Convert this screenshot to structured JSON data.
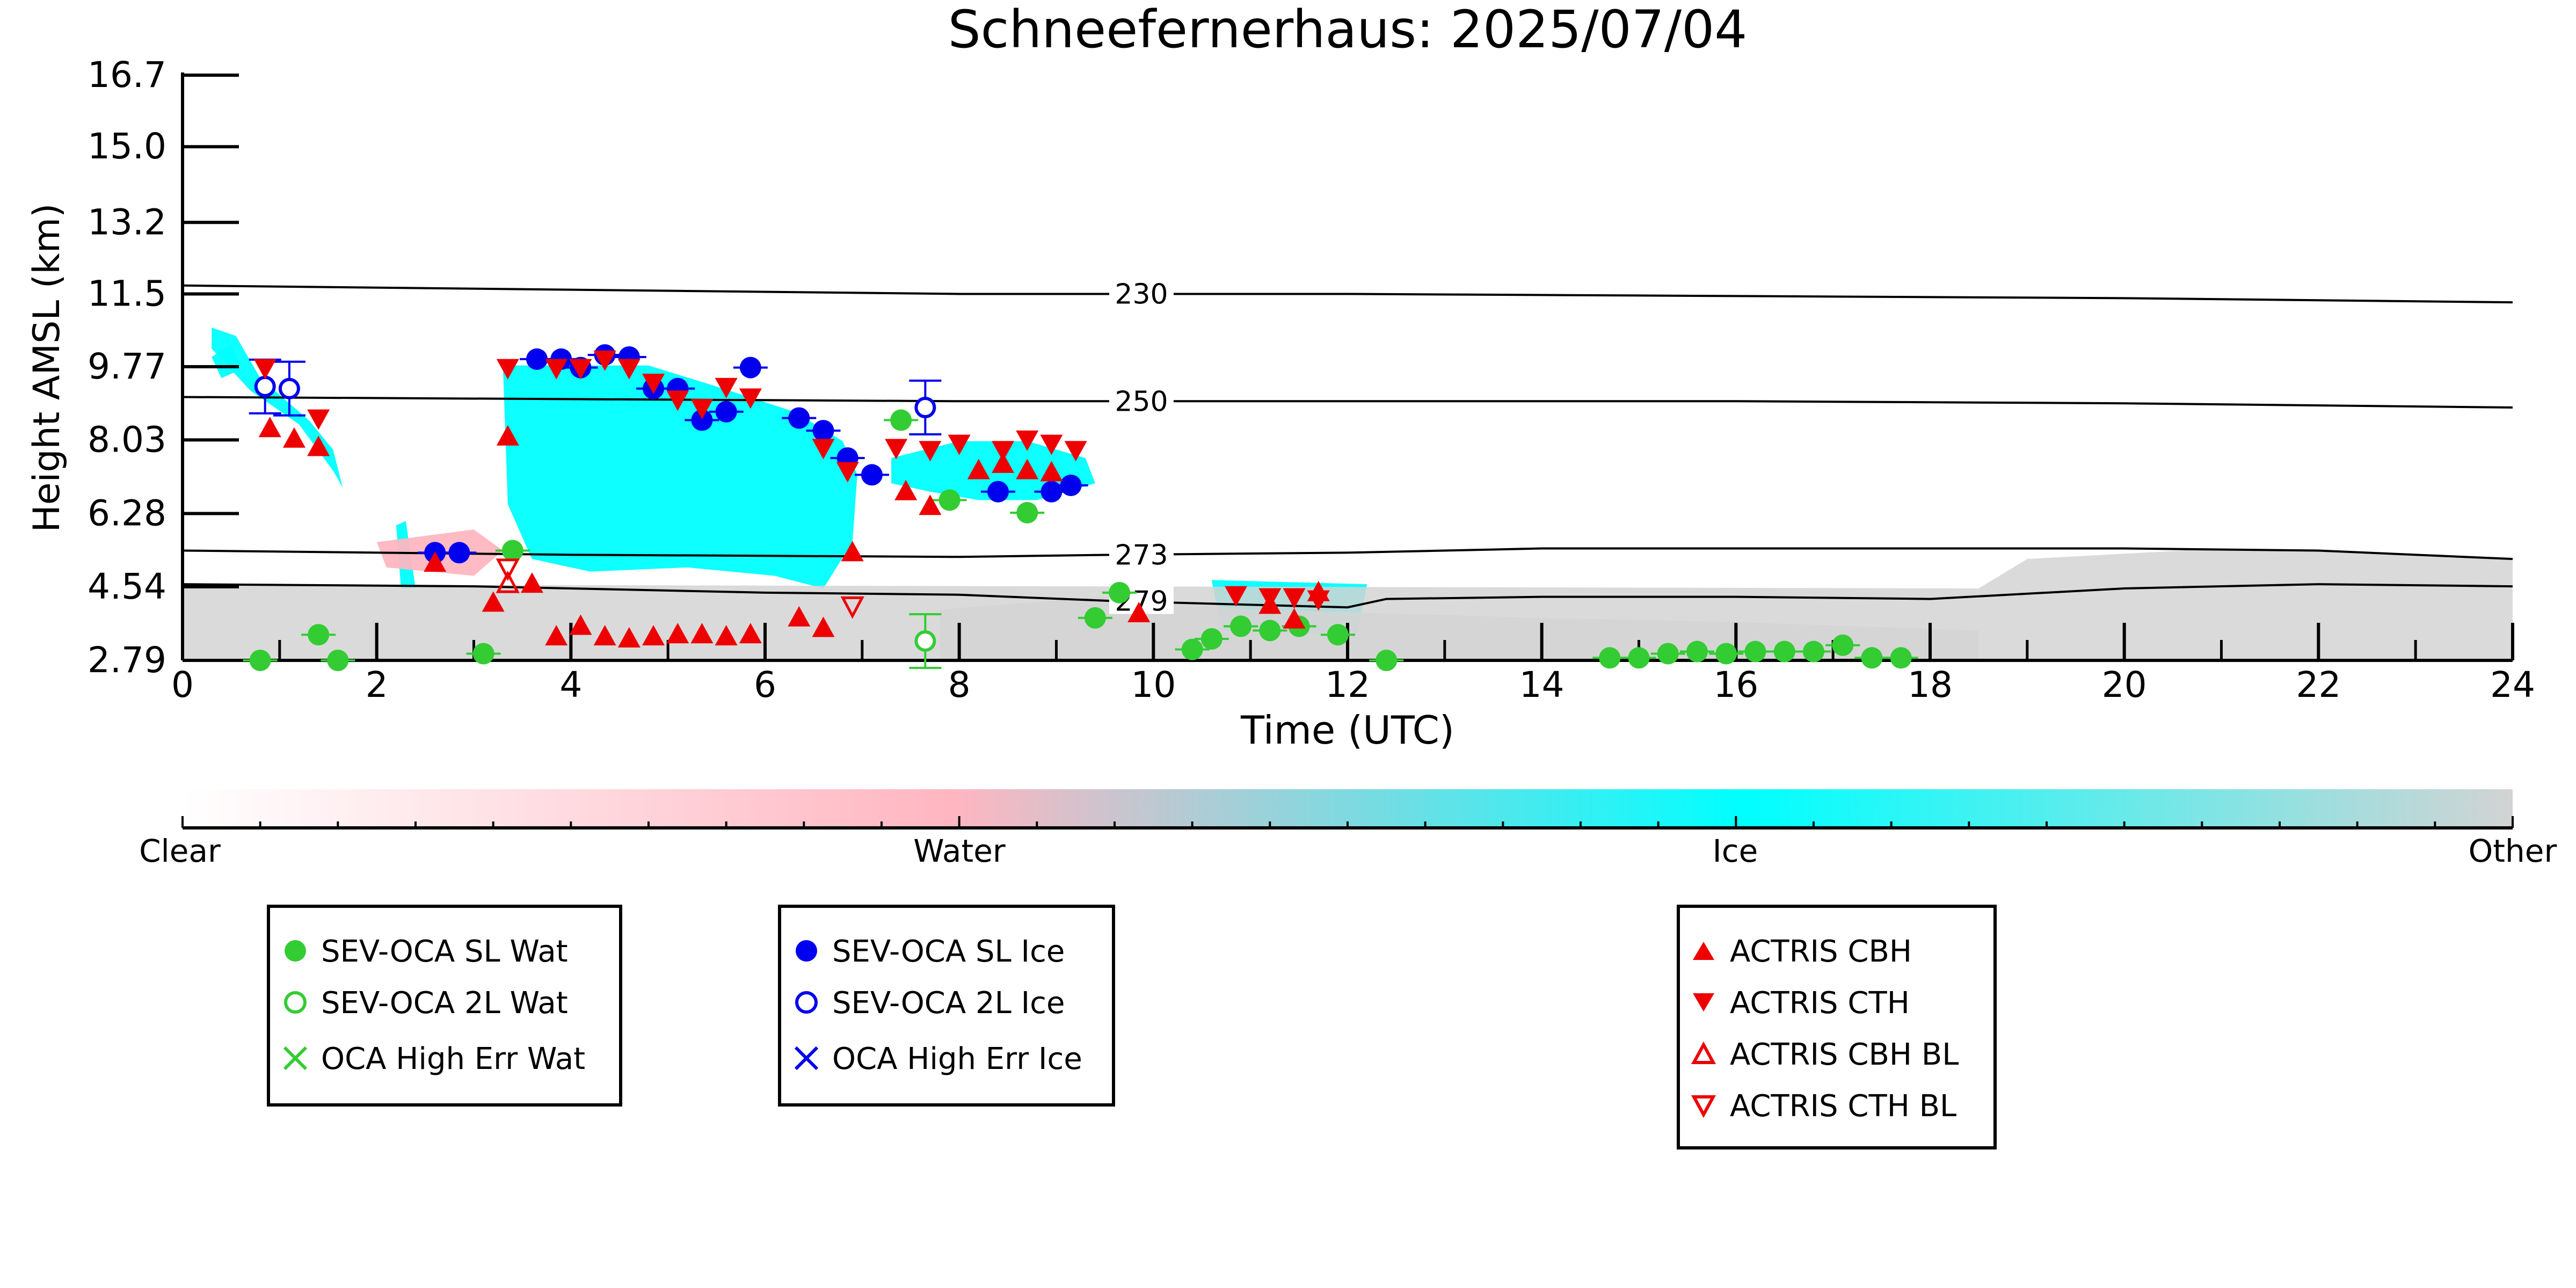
{
  "chart_data": {
    "type": "scatter",
    "title": "Schneefernerhaus: 2025/07/04",
    "xlabel": "Time (UTC)",
    "ylabel": "Height AMSL (km)",
    "xlim": [
      0,
      24
    ],
    "ylim": [
      2.79,
      16.7
    ],
    "x_ticks": [
      "0",
      "2",
      "4",
      "6",
      "8",
      "10",
      "12",
      "14",
      "16",
      "18",
      "20",
      "22",
      "24"
    ],
    "y_ticks": [
      "2.79",
      "4.54",
      "6.28",
      "8.03",
      "9.77",
      "11.5",
      "13.2",
      "15.0",
      "16.7"
    ],
    "isotherms": [
      {
        "label": "230",
        "points": [
          [
            0,
            11.7
          ],
          [
            4,
            11.6
          ],
          [
            8,
            11.5
          ],
          [
            12,
            11.5
          ],
          [
            16,
            11.45
          ],
          [
            20,
            11.4
          ],
          [
            24,
            11.3
          ]
        ]
      },
      {
        "label": "250",
        "points": [
          [
            0,
            9.05
          ],
          [
            4,
            9.0
          ],
          [
            8,
            8.95
          ],
          [
            12,
            8.95
          ],
          [
            16,
            8.95
          ],
          [
            20,
            8.9
          ],
          [
            24,
            8.8
          ]
        ]
      },
      {
        "label": "273",
        "points": [
          [
            0,
            5.4
          ],
          [
            4,
            5.3
          ],
          [
            8,
            5.25
          ],
          [
            9.6,
            5.3
          ],
          [
            12,
            5.35
          ],
          [
            14,
            5.45
          ],
          [
            16,
            5.45
          ],
          [
            18,
            5.45
          ],
          [
            20,
            5.45
          ],
          [
            22,
            5.4
          ],
          [
            24,
            5.2
          ]
        ]
      },
      {
        "label": "279",
        "points": [
          [
            0,
            4.6
          ],
          [
            3,
            4.55
          ],
          [
            6,
            4.4
          ],
          [
            8,
            4.35
          ],
          [
            9.6,
            4.2
          ],
          [
            12,
            4.05
          ],
          [
            12.4,
            4.25
          ],
          [
            14,
            4.3
          ],
          [
            16,
            4.3
          ],
          [
            18,
            4.25
          ],
          [
            20,
            4.5
          ],
          [
            22,
            4.6
          ],
          [
            24,
            4.55
          ]
        ]
      }
    ],
    "cloud_regions": [
      {
        "class": "Ice",
        "points": [
          [
            0.3,
            10.7
          ],
          [
            0.55,
            10.5
          ],
          [
            0.8,
            9.5
          ],
          [
            1.3,
            8.5
          ],
          [
            1.55,
            7.8
          ],
          [
            1.65,
            6.9
          ],
          [
            1.55,
            7.3
          ],
          [
            1.2,
            8.4
          ],
          [
            0.7,
            9.2
          ],
          [
            0.3,
            10.2
          ]
        ]
      },
      {
        "class": "Ice",
        "points": [
          [
            3.3,
            9.8
          ],
          [
            4.8,
            9.8
          ],
          [
            5.5,
            9.3
          ],
          [
            6.3,
            8.7
          ],
          [
            6.8,
            8.0
          ],
          [
            6.95,
            7.2
          ],
          [
            6.9,
            5.6
          ],
          [
            6.6,
            4.5
          ],
          [
            6.1,
            4.8
          ],
          [
            5.2,
            5.0
          ],
          [
            4.2,
            4.9
          ],
          [
            3.6,
            5.2
          ],
          [
            3.35,
            6.5
          ]
        ]
      },
      {
        "class": "Ice",
        "points": [
          [
            7.3,
            7.6
          ],
          [
            8.0,
            8.0
          ],
          [
            8.7,
            8.0
          ],
          [
            9.3,
            7.6
          ],
          [
            9.4,
            7.0
          ],
          [
            8.8,
            6.6
          ],
          [
            8.2,
            6.6
          ],
          [
            7.7,
            6.8
          ],
          [
            7.3,
            7.0
          ]
        ]
      },
      {
        "class": "Ice",
        "points": [
          [
            0.3,
            10.0
          ],
          [
            0.5,
            10.3
          ],
          [
            0.6,
            9.7
          ],
          [
            0.4,
            9.5
          ]
        ]
      },
      {
        "class": "Ice",
        "points": [
          [
            10.6,
            4.7
          ],
          [
            12.2,
            4.6
          ],
          [
            12.1,
            3.4
          ],
          [
            10.7,
            3.5
          ]
        ]
      },
      {
        "class": "Ice",
        "points": [
          [
            2.2,
            6.0
          ],
          [
            2.3,
            6.1
          ],
          [
            2.4,
            4.5
          ],
          [
            2.25,
            4.5
          ]
        ]
      },
      {
        "class": "Water",
        "points": [
          [
            2.0,
            5.6
          ],
          [
            3.0,
            5.9
          ],
          [
            3.3,
            5.4
          ],
          [
            3.0,
            4.8
          ],
          [
            2.1,
            5.0
          ]
        ]
      },
      {
        "class": "Other",
        "points": [
          [
            0,
            4.6
          ],
          [
            18.5,
            4.5
          ],
          [
            18.5,
            3.3
          ],
          [
            24,
            3.3
          ],
          [
            24,
            2.79
          ],
          [
            0,
            2.79
          ]
        ]
      },
      {
        "class": "Other",
        "points": [
          [
            18.5,
            4.5
          ],
          [
            19,
            5.2
          ],
          [
            21,
            5.45
          ],
          [
            23,
            5.3
          ],
          [
            24,
            5.2
          ],
          [
            24,
            3.3
          ],
          [
            18.5,
            3.3
          ]
        ]
      },
      {
        "class": "Other",
        "points": [
          [
            7.8,
            4.0
          ],
          [
            9.5,
            4.3
          ],
          [
            11,
            4.0
          ],
          [
            14,
            3.8
          ],
          [
            16,
            3.7
          ],
          [
            18.5,
            3.5
          ],
          [
            18.5,
            2.79
          ],
          [
            7.8,
            2.79
          ]
        ]
      }
    ],
    "colorbar": {
      "labels": [
        "Clear",
        "Water",
        "Ice",
        "Other"
      ],
      "colors": [
        "#ffffff",
        "#ffb6c1",
        "#00ffff",
        "#d3d3d3"
      ]
    },
    "series": [
      {
        "name": "SEV-OCA SL Wat",
        "marker": "circle-filled",
        "color": "#33cc33",
        "points": [
          [
            0.8,
            2.79
          ],
          [
            1.4,
            3.4
          ],
          [
            1.6,
            2.79
          ],
          [
            3.1,
            2.95
          ],
          [
            3.4,
            5.4
          ],
          [
            7.4,
            8.5
          ],
          [
            7.9,
            6.6
          ],
          [
            8.7,
            6.3
          ],
          [
            9.4,
            3.8
          ],
          [
            9.65,
            4.4
          ],
          [
            10.4,
            3.05
          ],
          [
            10.6,
            3.3
          ],
          [
            10.9,
            3.6
          ],
          [
            11.2,
            3.5
          ],
          [
            11.5,
            3.6
          ],
          [
            11.9,
            3.4
          ],
          [
            12.4,
            2.79
          ],
          [
            14.7,
            2.85
          ],
          [
            15.0,
            2.85
          ],
          [
            15.3,
            2.95
          ],
          [
            15.6,
            3.0
          ],
          [
            15.9,
            2.95
          ],
          [
            16.2,
            3.0
          ],
          [
            16.5,
            3.0
          ],
          [
            16.8,
            3.0
          ],
          [
            17.1,
            3.15
          ],
          [
            17.4,
            2.85
          ],
          [
            17.7,
            2.85
          ]
        ]
      },
      {
        "name": "SEV-OCA 2L Wat",
        "marker": "circle-open",
        "color": "#33cc33",
        "points": [
          [
            7.65,
            3.25
          ]
        ]
      },
      {
        "name": "OCA High Err Wat",
        "marker": "x",
        "color": "#33cc33",
        "points": []
      },
      {
        "name": "SEV-OCA SL Ice",
        "marker": "circle-filled",
        "color": "#0000ee",
        "points": [
          [
            2.6,
            5.35
          ],
          [
            2.85,
            5.35
          ],
          [
            3.65,
            9.95
          ],
          [
            3.9,
            9.95
          ],
          [
            4.1,
            9.75
          ],
          [
            4.35,
            10.05
          ],
          [
            4.6,
            10.0
          ],
          [
            4.85,
            9.25
          ],
          [
            5.1,
            9.25
          ],
          [
            5.35,
            8.5
          ],
          [
            5.6,
            8.7
          ],
          [
            5.85,
            9.75
          ],
          [
            6.35,
            8.55
          ],
          [
            6.6,
            8.25
          ],
          [
            6.85,
            7.6
          ],
          [
            7.1,
            7.2
          ],
          [
            8.4,
            6.8
          ],
          [
            8.95,
            6.8
          ],
          [
            9.15,
            6.95
          ]
        ]
      },
      {
        "name": "SEV-OCA 2L Ice",
        "marker": "circle-open",
        "color": "#0000ee",
        "points": [
          [
            0.85,
            9.3
          ],
          [
            1.1,
            9.25
          ],
          [
            7.65,
            8.8
          ]
        ]
      },
      {
        "name": "OCA High Err Ice",
        "marker": "x",
        "color": "#0000ee",
        "points": []
      },
      {
        "name": "ACTRIS CBH",
        "marker": "triangle-up",
        "color": "#ee0000",
        "points": [
          [
            0.9,
            8.3
          ],
          [
            1.15,
            8.05
          ],
          [
            1.4,
            7.85
          ],
          [
            2.6,
            5.1
          ],
          [
            3.2,
            4.15
          ],
          [
            3.35,
            8.1
          ],
          [
            3.6,
            4.6
          ],
          [
            3.85,
            3.35
          ],
          [
            4.1,
            3.6
          ],
          [
            4.35,
            3.35
          ],
          [
            4.6,
            3.3
          ],
          [
            4.85,
            3.35
          ],
          [
            5.1,
            3.4
          ],
          [
            5.35,
            3.4
          ],
          [
            5.6,
            3.35
          ],
          [
            5.85,
            3.4
          ],
          [
            6.35,
            3.8
          ],
          [
            6.6,
            3.55
          ],
          [
            6.9,
            5.35
          ],
          [
            7.45,
            6.8
          ],
          [
            7.7,
            6.45
          ],
          [
            8.2,
            7.3
          ],
          [
            8.45,
            7.45
          ],
          [
            8.7,
            7.3
          ],
          [
            8.95,
            7.25
          ],
          [
            9.85,
            3.9
          ],
          [
            11.2,
            4.1
          ],
          [
            11.45,
            3.75
          ],
          [
            11.7,
            4.4
          ]
        ]
      },
      {
        "name": "ACTRIS CTH",
        "marker": "triangle-down",
        "color": "#ee0000",
        "points": [
          [
            0.85,
            9.75
          ],
          [
            1.4,
            8.55
          ],
          [
            3.35,
            9.75
          ],
          [
            3.85,
            9.75
          ],
          [
            4.1,
            9.75
          ],
          [
            4.35,
            9.95
          ],
          [
            4.6,
            9.75
          ],
          [
            4.85,
            9.4
          ],
          [
            5.1,
            9.0
          ],
          [
            5.35,
            8.8
          ],
          [
            5.6,
            9.3
          ],
          [
            5.85,
            9.05
          ],
          [
            6.6,
            7.85
          ],
          [
            6.85,
            7.3
          ],
          [
            7.35,
            7.85
          ],
          [
            7.7,
            7.8
          ],
          [
            8.0,
            7.95
          ],
          [
            8.45,
            7.8
          ],
          [
            8.7,
            8.05
          ],
          [
            8.95,
            7.95
          ],
          [
            9.2,
            7.8
          ],
          [
            10.85,
            4.35
          ],
          [
            11.2,
            4.3
          ],
          [
            11.45,
            4.3
          ],
          [
            11.7,
            4.25
          ]
        ]
      },
      {
        "name": "ACTRIS CBH BL",
        "marker": "triangle-up-open",
        "color": "#ee0000",
        "points": [
          [
            3.35,
            4.6
          ]
        ]
      },
      {
        "name": "ACTRIS CTH BL",
        "marker": "triangle-down-open",
        "color": "#ee0000",
        "points": [
          [
            3.35,
            5.0
          ],
          [
            6.9,
            4.1
          ]
        ]
      }
    ]
  }
}
